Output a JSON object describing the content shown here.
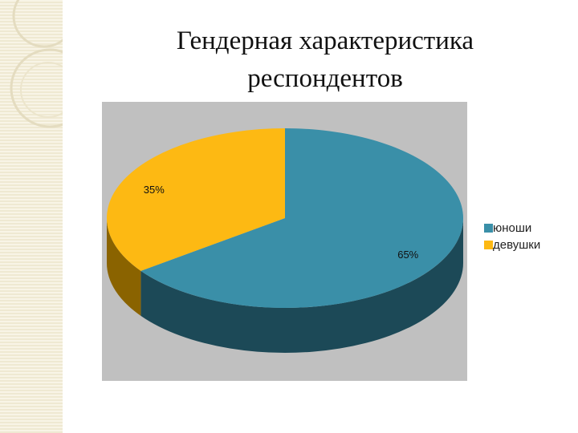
{
  "chart_data": {
    "type": "pie",
    "title": "Гендерная характеристика респондентов",
    "categories": [
      "юноши",
      "девушки"
    ],
    "values": [
      65,
      35
    ],
    "value_labels": [
      "65%",
      "35%"
    ],
    "colors": [
      "#3a8fa8",
      "#fdb913"
    ],
    "side_colors": [
      "#1c4957",
      "#8a6300"
    ]
  }
}
